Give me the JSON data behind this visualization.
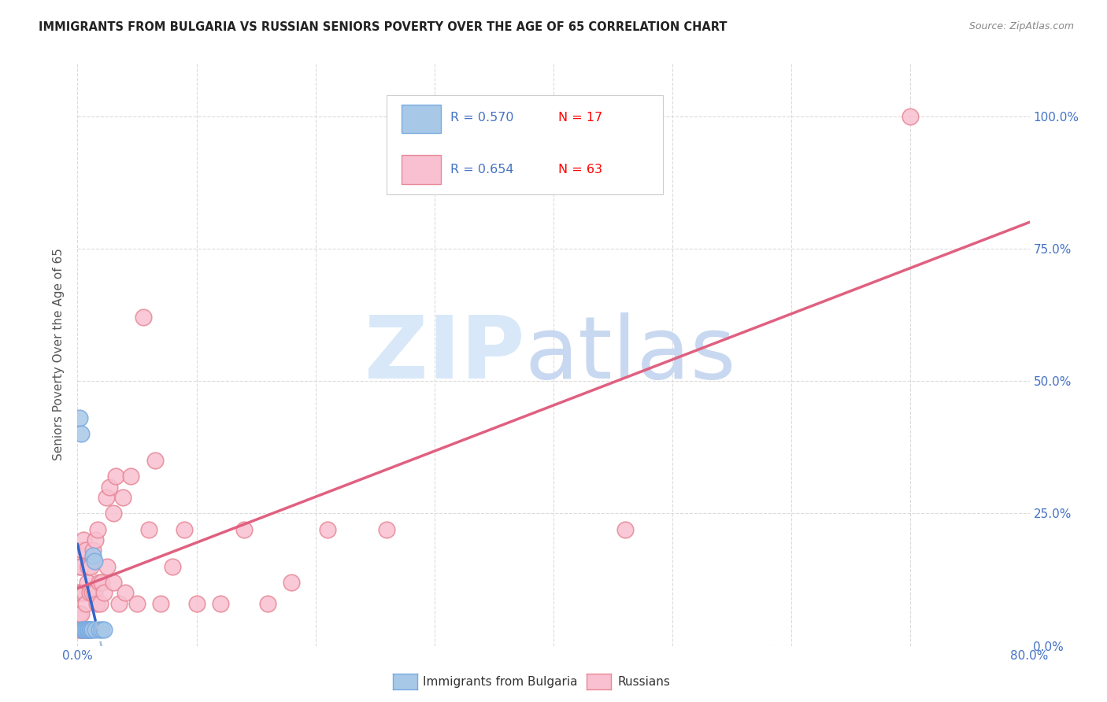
{
  "title": "IMMIGRANTS FROM BULGARIA VS RUSSIAN SENIORS POVERTY OVER THE AGE OF 65 CORRELATION CHART",
  "source": "Source: ZipAtlas.com",
  "ylabel": "Seniors Poverty Over the Age of 65",
  "xlim": [
    0.0,
    0.8
  ],
  "ylim": [
    0.0,
    1.1
  ],
  "xtick_positions": [
    0.0,
    0.1,
    0.2,
    0.3,
    0.4,
    0.5,
    0.6,
    0.7,
    0.8
  ],
  "xticklabels": [
    "0.0%",
    "",
    "",
    "",
    "",
    "",
    "",
    "",
    "80.0%"
  ],
  "ytick_positions": [
    0.0,
    0.25,
    0.5,
    0.75,
    1.0
  ],
  "yticklabels_right": [
    "0.0%",
    "25.0%",
    "50.0%",
    "75.0%",
    "100.0%"
  ],
  "legend_r1": "R = 0.570",
  "legend_n1": "N = 17",
  "legend_r2": "R = 0.654",
  "legend_n2": "N = 63",
  "label1": "Immigrants from Bulgaria",
  "label2": "Russians",
  "blue_fill": "#a8c8e8",
  "blue_edge": "#7aabe0",
  "blue_line": "#3366cc",
  "blue_dash": "#aabbd8",
  "pink_fill": "#f8c0d0",
  "pink_edge": "#e88898",
  "pink_line": "#e06080",
  "bg_color": "#ffffff",
  "grid_color": "#d8d8d8",
  "title_color": "#222222",
  "axis_label_color": "#4472c4",
  "ylabel_color": "#555555",
  "source_color": "#888888",
  "legend_r_color": "#4472c4",
  "legend_n_color": "#ff0000",
  "watermark_zip_color": "#d8e8f8",
  "watermark_atlas_color": "#c8d8f0",
  "bulgaria_x": [
    0.002,
    0.003,
    0.004,
    0.005,
    0.006,
    0.007,
    0.008,
    0.009,
    0.01,
    0.011,
    0.012,
    0.013,
    0.014,
    0.015,
    0.018,
    0.02,
    0.022
  ],
  "bulgaria_y": [
    0.43,
    0.4,
    0.03,
    0.03,
    0.03,
    0.03,
    0.03,
    0.03,
    0.03,
    0.03,
    0.03,
    0.17,
    0.16,
    0.03,
    0.03,
    0.03,
    0.03
  ],
  "russia_x": [
    0.001,
    0.001,
    0.001,
    0.002,
    0.002,
    0.002,
    0.002,
    0.003,
    0.003,
    0.003,
    0.004,
    0.004,
    0.004,
    0.005,
    0.005,
    0.006,
    0.006,
    0.007,
    0.007,
    0.007,
    0.008,
    0.008,
    0.009,
    0.009,
    0.01,
    0.01,
    0.011,
    0.012,
    0.013,
    0.014,
    0.015,
    0.016,
    0.017,
    0.018,
    0.019,
    0.02,
    0.022,
    0.024,
    0.025,
    0.027,
    0.03,
    0.03,
    0.032,
    0.035,
    0.038,
    0.04,
    0.045,
    0.05,
    0.055,
    0.06,
    0.065,
    0.07,
    0.08,
    0.09,
    0.1,
    0.12,
    0.14,
    0.16,
    0.18,
    0.21,
    0.26,
    0.46,
    0.7
  ],
  "russia_y": [
    0.03,
    0.06,
    0.1,
    0.03,
    0.06,
    0.1,
    0.15,
    0.03,
    0.06,
    0.15,
    0.03,
    0.1,
    0.18,
    0.03,
    0.2,
    0.03,
    0.1,
    0.03,
    0.08,
    0.18,
    0.03,
    0.12,
    0.03,
    0.15,
    0.03,
    0.1,
    0.15,
    0.1,
    0.18,
    0.1,
    0.2,
    0.08,
    0.22,
    0.12,
    0.08,
    0.12,
    0.1,
    0.28,
    0.15,
    0.3,
    0.12,
    0.25,
    0.32,
    0.08,
    0.28,
    0.1,
    0.32,
    0.08,
    0.62,
    0.22,
    0.35,
    0.08,
    0.15,
    0.22,
    0.08,
    0.08,
    0.22,
    0.08,
    0.12,
    0.22,
    0.22,
    0.22,
    1.0
  ],
  "marker_size": 220
}
